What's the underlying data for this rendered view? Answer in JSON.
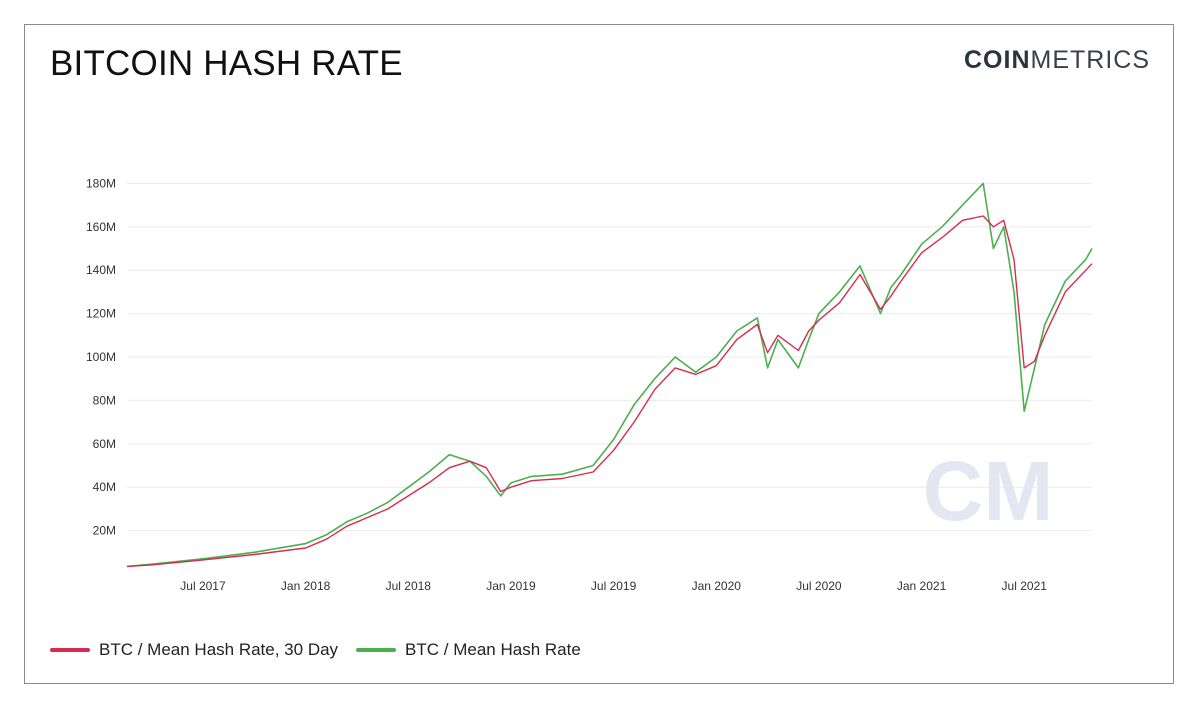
{
  "header": {
    "title": "BITCOIN HASH RATE",
    "brand_bold": "COIN",
    "brand_light": "METRICS"
  },
  "colors": {
    "series_30d": "#d62c50",
    "series_daily": "#4caf50",
    "grid": "#ececec",
    "watermark": "#e4e7f2"
  },
  "watermark_text": "CM",
  "chart_data": {
    "type": "line",
    "title": "BITCOIN HASH RATE",
    "xlabel": "",
    "ylabel": "",
    "xlim": [
      2017.13,
      2021.83
    ],
    "ylim": [
      0,
      200000000
    ],
    "yticks": [
      20000000,
      40000000,
      60000000,
      80000000,
      100000000,
      120000000,
      140000000,
      160000000,
      180000000
    ],
    "ytick_labels": [
      "20M",
      "40M",
      "60M",
      "80M",
      "100M",
      "120M",
      "140M",
      "160M",
      "180M"
    ],
    "xticks": [
      2017.5,
      2018.0,
      2018.5,
      2019.0,
      2019.5,
      2020.0,
      2020.5,
      2021.0,
      2021.5
    ],
    "xtick_labels": [
      "Jul 2017",
      "Jan 2018",
      "Jul 2018",
      "Jan 2019",
      "Jul 2019",
      "Jan 2020",
      "Jul 2020",
      "Jan 2021",
      "Jul 2021"
    ],
    "legend_position": "bottom-left",
    "grid": true,
    "series": [
      {
        "name": "BTC / Mean Hash Rate, 30 Day",
        "color": "#d62c50",
        "x": [
          2017.13,
          2017.25,
          2017.5,
          2017.75,
          2018.0,
          2018.1,
          2018.2,
          2018.3,
          2018.4,
          2018.5,
          2018.6,
          2018.7,
          2018.8,
          2018.88,
          2018.95,
          2019.0,
          2019.1,
          2019.25,
          2019.4,
          2019.5,
          2019.6,
          2019.7,
          2019.8,
          2019.9,
          2020.0,
          2020.1,
          2020.2,
          2020.25,
          2020.3,
          2020.4,
          2020.45,
          2020.5,
          2020.6,
          2020.7,
          2020.8,
          2020.85,
          2020.9,
          2021.0,
          2021.1,
          2021.2,
          2021.3,
          2021.35,
          2021.4,
          2021.45,
          2021.5,
          2021.55,
          2021.6,
          2021.7,
          2021.8,
          2021.83
        ],
        "y": [
          3500000,
          4200000,
          6500000,
          9000000,
          12000000,
          16000000,
          22000000,
          26000000,
          30000000,
          36000000,
          42000000,
          49000000,
          52000000,
          49000000,
          38000000,
          40000000,
          43000000,
          44000000,
          47000000,
          57000000,
          70000000,
          85000000,
          95000000,
          92000000,
          96000000,
          108000000,
          115000000,
          102000000,
          110000000,
          103000000,
          112000000,
          117000000,
          125000000,
          138000000,
          122000000,
          128000000,
          135000000,
          148000000,
          155000000,
          163000000,
          165000000,
          160000000,
          163000000,
          145000000,
          95000000,
          98000000,
          110000000,
          130000000,
          140000000,
          143000000
        ]
      },
      {
        "name": "BTC / Mean Hash Rate",
        "color": "#4caf50",
        "x": [
          2017.13,
          2017.25,
          2017.5,
          2017.75,
          2018.0,
          2018.1,
          2018.2,
          2018.3,
          2018.4,
          2018.5,
          2018.6,
          2018.7,
          2018.8,
          2018.88,
          2018.95,
          2019.0,
          2019.1,
          2019.25,
          2019.4,
          2019.5,
          2019.6,
          2019.7,
          2019.8,
          2019.9,
          2020.0,
          2020.1,
          2020.2,
          2020.25,
          2020.3,
          2020.4,
          2020.45,
          2020.5,
          2020.6,
          2020.7,
          2020.8,
          2020.85,
          2020.9,
          2021.0,
          2021.1,
          2021.2,
          2021.3,
          2021.35,
          2021.4,
          2021.45,
          2021.5,
          2021.55,
          2021.6,
          2021.7,
          2021.8,
          2021.83
        ],
        "y": [
          3500000,
          4500000,
          7000000,
          10000000,
          14000000,
          18000000,
          24000000,
          28000000,
          33000000,
          40000000,
          47000000,
          55000000,
          52000000,
          45000000,
          36000000,
          42000000,
          45000000,
          46000000,
          50000000,
          62000000,
          78000000,
          90000000,
          100000000,
          93000000,
          100000000,
          112000000,
          118000000,
          95000000,
          108000000,
          95000000,
          108000000,
          120000000,
          130000000,
          142000000,
          120000000,
          132000000,
          138000000,
          152000000,
          160000000,
          170000000,
          180000000,
          150000000,
          160000000,
          130000000,
          75000000,
          95000000,
          115000000,
          135000000,
          145000000,
          150000000
        ]
      }
    ]
  }
}
